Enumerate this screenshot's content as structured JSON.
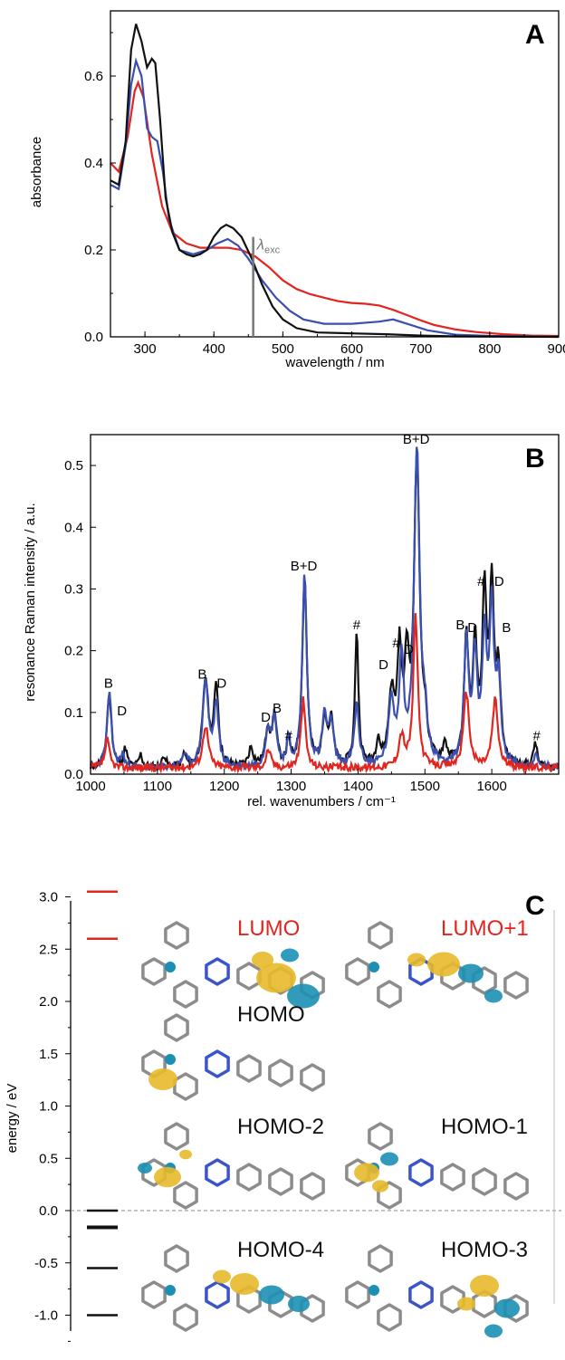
{
  "colors": {
    "black": "#111111",
    "blue": "#3a4fb0",
    "red": "#e0261f",
    "grey": "#777777",
    "gold": "#e7b92a",
    "cyan": "#1c8fb4"
  },
  "chart_data": [
    {
      "panel": "A",
      "type": "line",
      "xlabel": "wavelength / nm",
      "ylabel": "absorbance",
      "xlim": [
        250,
        900
      ],
      "ylim": [
        0,
        0.75
      ],
      "xticks": [
        300,
        400,
        500,
        600,
        700,
        800,
        900
      ],
      "yticks": [
        "0.0",
        "0.2",
        "0.4",
        "0.6"
      ],
      "annotation": {
        "text": "λ",
        "subscript": "exc",
        "x": 457,
        "y_top": 0.23
      },
      "series": [
        {
          "color": "black",
          "points": [
            [
              250,
              0.36
            ],
            [
              262,
              0.35
            ],
            [
              272,
              0.45
            ],
            [
              280,
              0.66
            ],
            [
              287,
              0.72
            ],
            [
              295,
              0.68
            ],
            [
              303,
              0.62
            ],
            [
              310,
              0.64
            ],
            [
              315,
              0.63
            ],
            [
              322,
              0.5
            ],
            [
              330,
              0.32
            ],
            [
              340,
              0.24
            ],
            [
              350,
              0.2
            ],
            [
              360,
              0.19
            ],
            [
              370,
              0.185
            ],
            [
              380,
              0.19
            ],
            [
              390,
              0.2
            ],
            [
              400,
              0.23
            ],
            [
              410,
              0.25
            ],
            [
              418,
              0.258
            ],
            [
              428,
              0.25
            ],
            [
              440,
              0.23
            ],
            [
              455,
              0.18
            ],
            [
              470,
              0.12
            ],
            [
              485,
              0.07
            ],
            [
              500,
              0.04
            ],
            [
              520,
              0.02
            ],
            [
              550,
              0.01
            ],
            [
              600,
              0.008
            ],
            [
              650,
              0.006
            ],
            [
              700,
              0.003
            ],
            [
              750,
              0.001
            ],
            [
              900,
              0
            ]
          ]
        },
        {
          "color": "blue",
          "points": [
            [
              250,
              0.35
            ],
            [
              262,
              0.34
            ],
            [
              272,
              0.44
            ],
            [
              280,
              0.58
            ],
            [
              287,
              0.635
            ],
            [
              295,
              0.6
            ],
            [
              303,
              0.48
            ],
            [
              310,
              0.46
            ],
            [
              318,
              0.45
            ],
            [
              326,
              0.38
            ],
            [
              335,
              0.27
            ],
            [
              350,
              0.2
            ],
            [
              370,
              0.19
            ],
            [
              390,
              0.2
            ],
            [
              405,
              0.215
            ],
            [
              420,
              0.225
            ],
            [
              435,
              0.21
            ],
            [
              450,
              0.18
            ],
            [
              470,
              0.13
            ],
            [
              490,
              0.09
            ],
            [
              510,
              0.06
            ],
            [
              530,
              0.04
            ],
            [
              560,
              0.03
            ],
            [
              600,
              0.03
            ],
            [
              640,
              0.035
            ],
            [
              660,
              0.04
            ],
            [
              680,
              0.03
            ],
            [
              710,
              0.015
            ],
            [
              750,
              0.005
            ],
            [
              800,
              0.002
            ],
            [
              900,
              0
            ]
          ]
        },
        {
          "color": "red",
          "points": [
            [
              250,
              0.4
            ],
            [
              262,
              0.38
            ],
            [
              275,
              0.46
            ],
            [
              285,
              0.565
            ],
            [
              290,
              0.585
            ],
            [
              298,
              0.55
            ],
            [
              310,
              0.42
            ],
            [
              325,
              0.3
            ],
            [
              340,
              0.24
            ],
            [
              360,
              0.215
            ],
            [
              380,
              0.205
            ],
            [
              400,
              0.205
            ],
            [
              420,
              0.205
            ],
            [
              440,
              0.2
            ],
            [
              460,
              0.185
            ],
            [
              480,
              0.16
            ],
            [
              500,
              0.13
            ],
            [
              520,
              0.11
            ],
            [
              540,
              0.098
            ],
            [
              560,
              0.09
            ],
            [
              580,
              0.082
            ],
            [
              600,
              0.078
            ],
            [
              620,
              0.076
            ],
            [
              640,
              0.072
            ],
            [
              660,
              0.062
            ],
            [
              680,
              0.05
            ],
            [
              700,
              0.038
            ],
            [
              720,
              0.027
            ],
            [
              750,
              0.017
            ],
            [
              780,
              0.011
            ],
            [
              820,
              0.006
            ],
            [
              860,
              0.003
            ],
            [
              900,
              0.002
            ]
          ]
        }
      ]
    },
    {
      "panel": "B",
      "type": "line",
      "xlabel": "rel. wavenumbers / cm⁻¹",
      "ylabel": "resonance Raman intensity / a.u.",
      "xlim": [
        1000,
        1700
      ],
      "ylim": [
        0,
        0.55
      ],
      "xticks": [
        1000,
        1100,
        1200,
        1300,
        1400,
        1500,
        1600
      ],
      "yticks": [
        "0.0",
        "0.1",
        "0.2",
        "0.3",
        "0.4",
        "0.5"
      ],
      "baseline": 0.01,
      "peaks": {
        "black": [
          [
            1028,
            0.12,
            4
          ],
          [
            1052,
            0.03,
            3
          ],
          [
            1075,
            0.02,
            3
          ],
          [
            1110,
            0.02,
            3
          ],
          [
            1140,
            0.02,
            3
          ],
          [
            1172,
            0.14,
            5
          ],
          [
            1188,
            0.13,
            4
          ],
          [
            1240,
            0.03,
            4
          ],
          [
            1265,
            0.06,
            4
          ],
          [
            1275,
            0.08,
            4
          ],
          [
            1296,
            0.04,
            3
          ],
          [
            1320,
            0.31,
            4
          ],
          [
            1350,
            0.08,
            4
          ],
          [
            1360,
            0.07,
            4
          ],
          [
            1398,
            0.22,
            3
          ],
          [
            1430,
            0.04,
            3
          ],
          [
            1450,
            0.11,
            5
          ],
          [
            1462,
            0.17,
            4
          ],
          [
            1473,
            0.15,
            4
          ],
          [
            1488,
            0.49,
            5
          ],
          [
            1500,
            0.05,
            4
          ],
          [
            1530,
            0.03,
            4
          ],
          [
            1562,
            0.2,
            4
          ],
          [
            1575,
            0.18,
            4
          ],
          [
            1589,
            0.26,
            4
          ],
          [
            1600,
            0.27,
            4
          ],
          [
            1610,
            0.14,
            4
          ],
          [
            1665,
            0.04,
            3
          ]
        ],
        "blue": [
          [
            1028,
            0.12,
            4
          ],
          [
            1048,
            0.02,
            3
          ],
          [
            1140,
            0.02,
            4
          ],
          [
            1172,
            0.14,
            5
          ],
          [
            1188,
            0.1,
            4
          ],
          [
            1265,
            0.06,
            4
          ],
          [
            1275,
            0.08,
            4
          ],
          [
            1296,
            0.04,
            3
          ],
          [
            1320,
            0.31,
            4
          ],
          [
            1350,
            0.08,
            4
          ],
          [
            1360,
            0.07,
            4
          ],
          [
            1398,
            0.1,
            4
          ],
          [
            1450,
            0.1,
            5
          ],
          [
            1465,
            0.17,
            4
          ],
          [
            1488,
            0.51,
            5
          ],
          [
            1500,
            0.06,
            4
          ],
          [
            1562,
            0.2,
            4
          ],
          [
            1575,
            0.17,
            4
          ],
          [
            1589,
            0.2,
            4
          ],
          [
            1600,
            0.24,
            4
          ],
          [
            1610,
            0.13,
            4
          ],
          [
            1665,
            0.02,
            3
          ]
        ],
        "red": [
          [
            1025,
            0.045,
            4
          ],
          [
            1172,
            0.07,
            5
          ],
          [
            1266,
            0.03,
            4
          ],
          [
            1318,
            0.11,
            4
          ],
          [
            1465,
            0.05,
            5
          ],
          [
            1486,
            0.245,
            4
          ],
          [
            1562,
            0.12,
            5
          ],
          [
            1605,
            0.11,
            5
          ]
        ]
      },
      "labels": [
        {
          "text": "B",
          "x": 1027,
          "y": 0.14
        },
        {
          "text": "D",
          "x": 1047,
          "y": 0.095
        },
        {
          "text": "B",
          "x": 1167,
          "y": 0.155
        },
        {
          "text": "D",
          "x": 1196,
          "y": 0.14
        },
        {
          "text": "D",
          "x": 1262,
          "y": 0.085
        },
        {
          "text": "B",
          "x": 1279,
          "y": 0.1
        },
        {
          "text": "#",
          "x": 1296,
          "y": 0.055
        },
        {
          "text": "B+D",
          "x": 1319,
          "y": 0.33
        },
        {
          "text": "#",
          "x": 1398,
          "y": 0.235
        },
        {
          "text": "D",
          "x": 1438,
          "y": 0.17
        },
        {
          "text": "#",
          "x": 1457,
          "y": 0.205
        },
        {
          "text": "D",
          "x": 1476,
          "y": 0.195
        },
        {
          "text": "B+D",
          "x": 1487,
          "y": 0.535
        },
        {
          "text": "B",
          "x": 1553,
          "y": 0.235
        },
        {
          "text": "D",
          "x": 1571,
          "y": 0.23
        },
        {
          "text": "#",
          "x": 1584,
          "y": 0.305
        },
        {
          "text": "D",
          "x": 1611,
          "y": 0.305
        },
        {
          "text": "B",
          "x": 1622,
          "y": 0.23
        },
        {
          "text": "#",
          "x": 1667,
          "y": 0.055
        }
      ]
    },
    {
      "panel": "C",
      "type": "diagram",
      "ylabel": "energy / eV",
      "ylim": [
        -1.3,
        3.2
      ],
      "yticks": [
        "-1.0",
        "-0.5",
        "0.0",
        "0.5",
        "1.0",
        "1.5",
        "2.0",
        "2.5",
        "3.0"
      ],
      "levels": [
        {
          "energy": 3.05,
          "color": "red"
        },
        {
          "energy": 2.6,
          "color": "red"
        },
        {
          "energy": 0.0,
          "color": "black"
        },
        {
          "energy": -0.16,
          "color": "black"
        },
        {
          "energy": -0.55,
          "color": "black"
        },
        {
          "energy": -1.0,
          "color": "black"
        }
      ],
      "orbitals": [
        "LUMO",
        "LUMO+1",
        "HOMO",
        "HOMO-2",
        "HOMO-1",
        "HOMO-4",
        "HOMO-3"
      ]
    }
  ]
}
